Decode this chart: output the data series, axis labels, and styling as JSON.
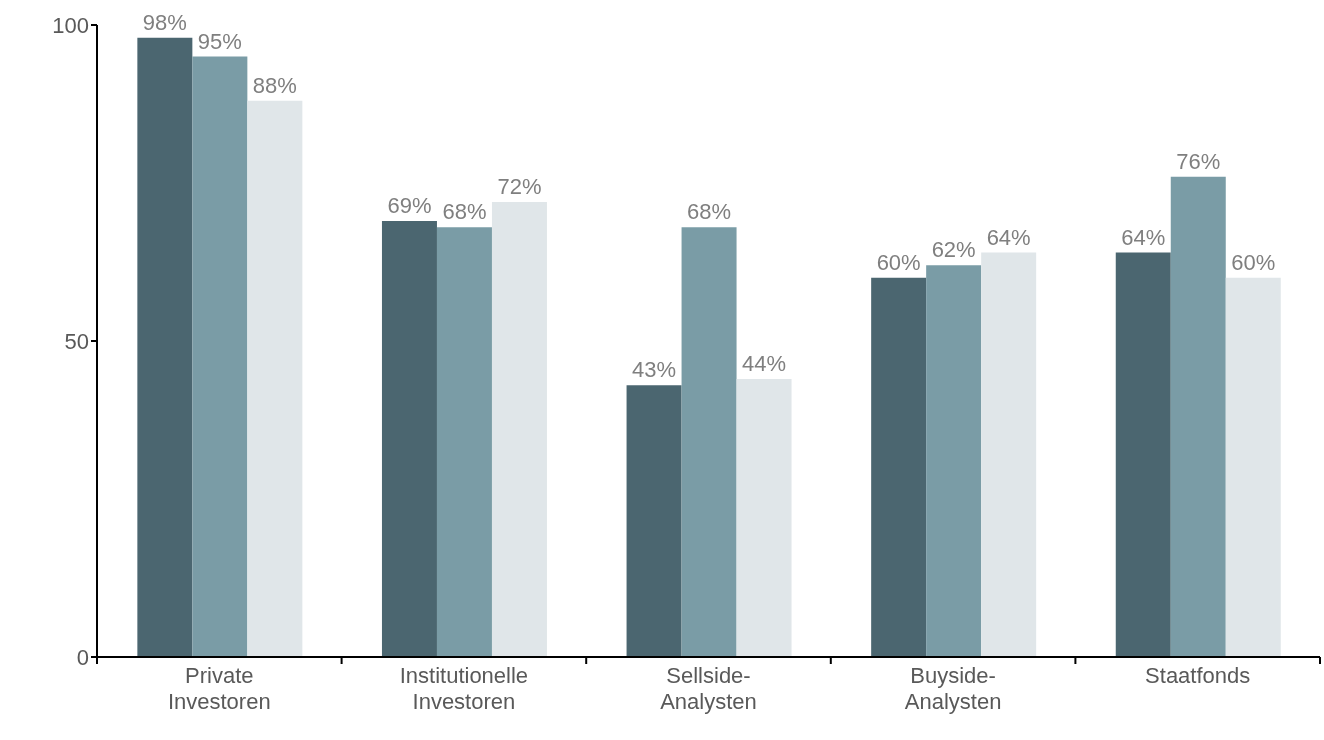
{
  "chart_data": {
    "type": "bar",
    "categories": [
      "Private Investoren",
      "Institutionelle Investoren",
      "Sellside-Analysten",
      "Buyside-Analysten",
      "Staatfonds"
    ],
    "series": [
      {
        "color": "#4b6670",
        "values": [
          98,
          69,
          43,
          60,
          64
        ],
        "value_labels": [
          "98%",
          "69%",
          "43%",
          "60%",
          "64%"
        ]
      },
      {
        "color": "#7a9ca6",
        "values": [
          95,
          68,
          68,
          62,
          76
        ],
        "value_labels": [
          "95%",
          "68%",
          "68%",
          "62%",
          "76%"
        ]
      },
      {
        "color": "#e0e6e9",
        "values": [
          88,
          72,
          44,
          64,
          60
        ],
        "value_labels": [
          "88%",
          "72%",
          "44%",
          "64%",
          "60%"
        ]
      }
    ],
    "ylim": [
      0,
      100
    ],
    "yticks": [
      0,
      50,
      100
    ],
    "grid": false,
    "legend": false
  }
}
